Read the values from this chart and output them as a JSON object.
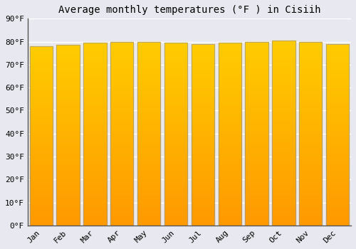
{
  "title": "Average monthly temperatures (°F ) in Cisiih",
  "months": [
    "Jan",
    "Feb",
    "Mar",
    "Apr",
    "May",
    "Jun",
    "Jul",
    "Aug",
    "Sep",
    "Oct",
    "Nov",
    "Dec"
  ],
  "values": [
    78,
    78.5,
    79.5,
    80,
    80,
    79.5,
    79,
    79.5,
    80,
    80.5,
    80,
    79
  ],
  "bar_color_top": "#FFCC00",
  "bar_color_bottom": "#FF9900",
  "bar_edge_color": "#999999",
  "background_color": "#e8e8f0",
  "plot_bg_color": "#e8e8f0",
  "grid_color": "#ffffff",
  "title_fontsize": 10,
  "tick_fontsize": 8,
  "ytick_labels": [
    "0°F",
    "10°F",
    "20°F",
    "30°F",
    "40°F",
    "50°F",
    "60°F",
    "70°F",
    "80°F",
    "90°F"
  ],
  "ytick_values": [
    0,
    10,
    20,
    30,
    40,
    50,
    60,
    70,
    80,
    90
  ],
  "ylim": [
    0,
    90
  ],
  "bar_width": 0.85
}
